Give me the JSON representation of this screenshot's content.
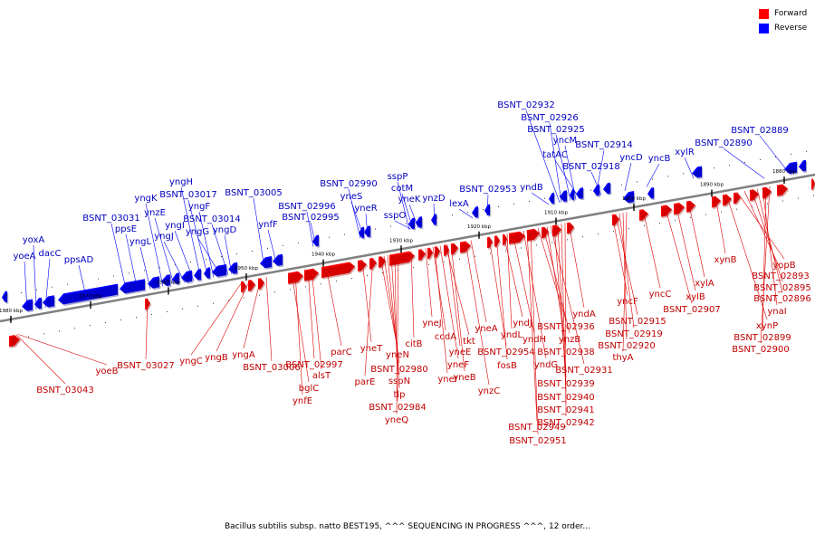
{
  "caption": "Bacillus subtilis subsp. natto BEST195, ^^^ SEQUENCING IN PROGRESS ^^^, 12 order...",
  "legend": [
    {
      "label": "Forward",
      "color": "#ff0000"
    },
    {
      "label": "Reverse",
      "color": "#0000ff"
    }
  ],
  "colors": {
    "forward_text": "#c00000",
    "reverse_text": "#0000c0",
    "axis": "#808080"
  },
  "axis_labels": [
    "1980 kbp",
    "1970 kbp",
    "1960 kbp",
    "1950 kbp",
    "1940 kbp",
    "1930 kbp",
    "1920 kbp",
    "1910 kbp",
    "1900 kbp",
    "1890 kbp",
    "1880 kbp"
  ],
  "reverse_genes": [
    "yoeA",
    "yoxA",
    "dacC",
    "ppsAD",
    "BSNT_03031",
    "ppsE",
    "yngL",
    "yngK",
    "ynzE",
    "yngJ",
    "yngI",
    "yngH",
    "BSNT_03017",
    "yngF",
    "yngG",
    "BSNT_03014",
    "yngD",
    "BSNT_03005",
    "ynfF",
    "BSNT_02996",
    "BSNT_02995",
    "BSNT_02990",
    "yneS",
    "yneR",
    "sspP",
    "cotM",
    "sspO",
    "yneK",
    "ynzD",
    "lexA",
    "BSNT_02953",
    "yndB",
    "BSNT_02932",
    "BSNT_02926",
    "BSNT_02925",
    "yncM",
    "tatAC",
    "BSNT_02914",
    "BSNT_02918",
    "yncD",
    "yncB",
    "xylR",
    "BSNT_02890",
    "BSNT_02889"
  ],
  "forward_genes": [
    "BSNT_03043",
    "yoeB",
    "BSNT_03027",
    "yngC",
    "yngB",
    "yngA",
    "BSNT_03006",
    "bglC",
    "ynfE",
    "BSNT_02997",
    "alsT",
    "parC",
    "yneT",
    "parE",
    "yneN",
    "BSNT_02980",
    "sspN",
    "tlp",
    "BSNT_02984",
    "yneQ",
    "citB",
    "yneJ",
    "ccdA",
    "yneI",
    "yneF",
    "tkt",
    "yneE",
    "yneB",
    "ynzC",
    "yneA",
    "BSNT_02954",
    "fosB",
    "yndJ",
    "yndL",
    "yndH",
    "yndG",
    "BSNT_02949",
    "BSNT_02951",
    "BSNT_02936",
    "ynzB",
    "BSNT_02938",
    "BSNT_02931",
    "BSNT_02939",
    "BSNT_02940",
    "BSNT_02941",
    "BSNT_02942",
    "yndA",
    "yncF",
    "BSNT_02915",
    "BSNT_02919",
    "BSNT_02920",
    "thyA",
    "yncC",
    "BSNT_02907",
    "xylB",
    "xylA",
    "xynB",
    "xynP",
    "yopB",
    "BSNT_02893",
    "BSNT_02895",
    "BSNT_02896",
    "ynaI",
    "BSNT_02899",
    "BSNT_02900"
  ]
}
